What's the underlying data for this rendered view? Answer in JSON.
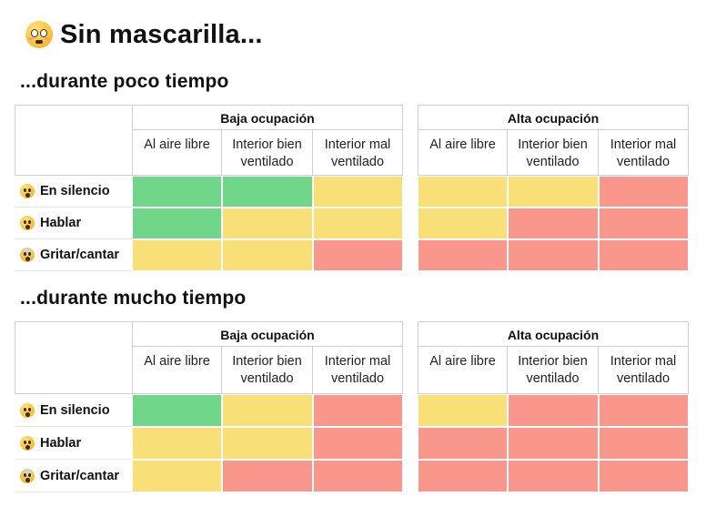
{
  "title": "Sin mascarilla...",
  "title_icon": "flushed-face-icon",
  "colors": {
    "green": "#6fd68a",
    "yellow": "#f9df78",
    "red": "#f9978c",
    "border": "#cfcfcf"
  },
  "groups": [
    "Baja ocupación",
    "Alta ocupación"
  ],
  "columns": [
    "Al aire libre",
    "Interior bien ventilado",
    "Interior mal ventilado"
  ],
  "rows": [
    {
      "label": "En silencio",
      "icon": "face-with-hand-over-mouth-icon"
    },
    {
      "label": "Hablar",
      "icon": "hushed-face-icon"
    },
    {
      "label": "Gritar/cantar",
      "icon": "screaming-face-icon"
    }
  ],
  "sections": [
    {
      "heading": "...durante poco tiempo",
      "risk": [
        [
          "green",
          "green",
          "yellow",
          "yellow",
          "yellow",
          "red"
        ],
        [
          "green",
          "yellow",
          "yellow",
          "yellow",
          "red",
          "red"
        ],
        [
          "yellow",
          "yellow",
          "red",
          "red",
          "red",
          "red"
        ]
      ]
    },
    {
      "heading": "...durante mucho tiempo",
      "risk": [
        [
          "green",
          "yellow",
          "red",
          "yellow",
          "red",
          "red"
        ],
        [
          "yellow",
          "yellow",
          "red",
          "red",
          "red",
          "red"
        ],
        [
          "yellow",
          "red",
          "red",
          "red",
          "red",
          "red"
        ]
      ]
    }
  ]
}
